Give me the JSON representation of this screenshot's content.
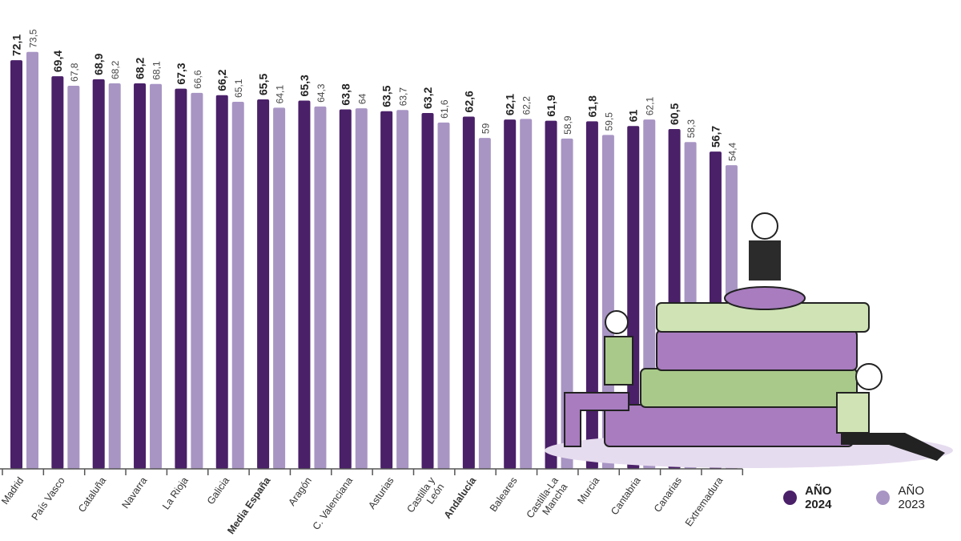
{
  "chart_data": {
    "type": "bar",
    "categories": [
      "Madrid",
      "País Vasco",
      "Cataluña",
      "Navarra",
      "La Rioja",
      "Galicia",
      "Media España",
      "Aragón",
      "C. Valenciana",
      "Asturias",
      "Castilla y León",
      "Andalucía",
      "Baleares",
      "Castilla-La Mancha",
      "Murcia",
      "Cantabria",
      "Canarias",
      "Extremadura"
    ],
    "bold_categories": [
      "Media España",
      "Andalucía"
    ],
    "series": [
      {
        "name": "AÑO 2024",
        "color": "#4a2069",
        "values": [
          72.1,
          69.4,
          68.9,
          68.2,
          67.3,
          66.2,
          65.5,
          65.3,
          63.8,
          63.5,
          63.2,
          62.6,
          62.1,
          61.9,
          61.8,
          61,
          60.5,
          56.7
        ]
      },
      {
        "name": "AÑO 2023",
        "color": "#a895c4",
        "values": [
          73.5,
          67.8,
          68.2,
          68.1,
          66.6,
          65.1,
          64.1,
          64.3,
          64,
          63.7,
          61.6,
          59,
          62.2,
          58.9,
          59.5,
          62.1,
          58.3,
          54.4
        ]
      }
    ],
    "value_labels": {
      "AÑO 2024": [
        "72,1",
        "69,4",
        "68,9",
        "68,2",
        "67,3",
        "66,2",
        "65,5",
        "65,3",
        "63,8",
        "63,5",
        "63,2",
        "62,6",
        "62,1",
        "61,9",
        "61,8",
        "61",
        "60,5",
        "56,7"
      ],
      "AÑO 2023": [
        "73,5",
        "67,8",
        "68,2",
        "68,1",
        "66,6",
        "65,1",
        "64,1",
        "64,3",
        "64",
        "63,7",
        "61,6",
        "59",
        "62,2",
        "58,9",
        "59,5",
        "62,1",
        "58,3",
        "54,4"
      ]
    },
    "title": "",
    "xlabel": "",
    "ylabel": "",
    "grid": false,
    "legend_position": "bottom-right"
  }
}
